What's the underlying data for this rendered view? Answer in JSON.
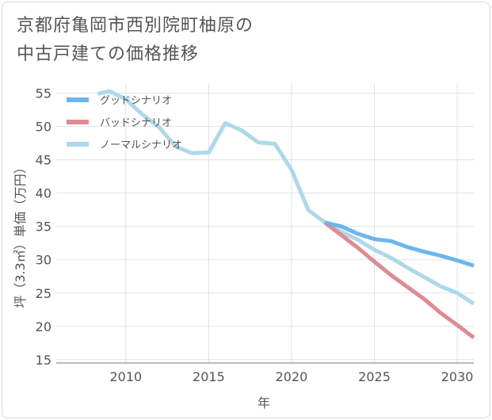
{
  "chart_data": {
    "type": "line",
    "title_lines": [
      "京都府亀岡市西別院町柚原の",
      "中古戸建ての価格推移"
    ],
    "xlabel": "年",
    "ylabel": "坪（3.3㎡）単価（万円）",
    "xlim": [
      2005.8,
      2031
    ],
    "ylim": [
      14.5,
      56.5
    ],
    "xticks": [
      2010,
      2015,
      2020,
      2025,
      2030
    ],
    "yticks": [
      15,
      20,
      25,
      30,
      35,
      40,
      45,
      50,
      55
    ],
    "grid": true,
    "legend_position": "top-left",
    "series": [
      {
        "name": "グッドシナリオ",
        "color": "#6bb6ec",
        "x": [
          2022,
          2023,
          2024,
          2025,
          2026,
          2027,
          2028,
          2029,
          2030,
          2031
        ],
        "y": [
          35.6,
          35.0,
          33.9,
          33.1,
          32.8,
          31.9,
          31.2,
          30.6,
          29.9,
          29.1
        ]
      },
      {
        "name": "バッドシナリオ",
        "color": "#e08a94",
        "x": [
          2022,
          2023,
          2024,
          2025,
          2026,
          2027,
          2028,
          2029,
          2030,
          2031
        ],
        "y": [
          35.6,
          33.7,
          31.8,
          29.7,
          27.7,
          25.9,
          24.1,
          22.0,
          20.2,
          18.3
        ]
      },
      {
        "name": "ノーマルシナリオ",
        "color": "#add9ea",
        "x": [
          2008.3,
          2009,
          2010,
          2011,
          2012,
          2013,
          2014,
          2015,
          2016,
          2017,
          2018,
          2019,
          2020,
          2021,
          2022,
          2023,
          2024,
          2025,
          2026,
          2027,
          2028,
          2029,
          2030,
          2031
        ],
        "y": [
          54.9,
          55.3,
          54.1,
          51.8,
          49.9,
          47.0,
          46.0,
          46.1,
          50.5,
          49.4,
          47.6,
          47.4,
          43.5,
          37.5,
          35.6,
          34.2,
          33.0,
          31.5,
          30.3,
          28.8,
          27.4,
          26.0,
          25.0,
          23.4
        ]
      }
    ]
  }
}
